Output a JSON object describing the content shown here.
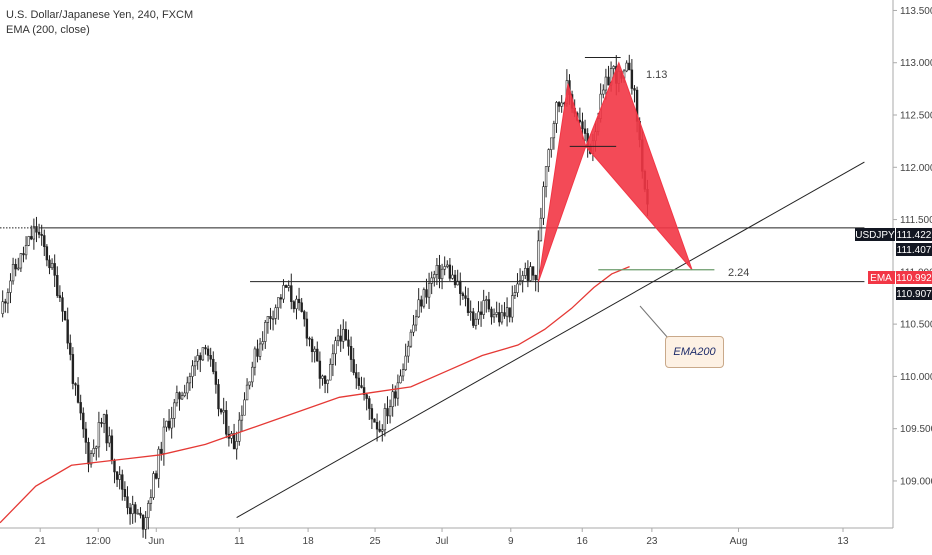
{
  "header": {
    "symbol_line": "U.S. Dollar/Japanese Yen, 240, FXCM",
    "indicator_line": "EMA (200, close)"
  },
  "price_tags": {
    "symbol": "USDJPY",
    "current": "111.422",
    "level_a": "111.407",
    "ema_label": "EMA",
    "ema_value": "110.992",
    "level_b": "110.907"
  },
  "annotations": {
    "ratio_top": "1.13",
    "ratio_bottom": "2.24",
    "callout": "EMA200"
  },
  "colors": {
    "candle": "#222222",
    "ema": "#e53935",
    "pattern": "#f23645",
    "ema_tag": "#f23645",
    "dark_tag": "#131722",
    "callout_bg": "#fdf1e4"
  },
  "chart_data": {
    "type": "candlestick",
    "title": "U.S. Dollar/Japanese Yen, 240, FXCM",
    "indicator": "EMA (200, close)",
    "y_axis": {
      "ylim": [
        108.55,
        113.6
      ],
      "ticks": [
        "113.500",
        "113.000",
        "112.500",
        "112.000",
        "111.500",
        "111.000",
        "110.500",
        "110.000",
        "109.500",
        "109.000"
      ],
      "position": "right"
    },
    "x_axis": {
      "ticks": [
        "21",
        "12:00",
        "Jun",
        "11",
        "18",
        "25",
        "Jul",
        "9",
        "16",
        "23",
        "Aug",
        "13"
      ],
      "tick_positions": [
        0.045,
        0.11,
        0.175,
        0.268,
        0.345,
        0.42,
        0.495,
        0.572,
        0.652,
        0.73,
        0.827,
        0.944
      ]
    },
    "price_path": [
      [
        0.0,
        110.6
      ],
      [
        0.012,
        110.95
      ],
      [
        0.025,
        111.15
      ],
      [
        0.04,
        111.42
      ],
      [
        0.055,
        111.1
      ],
      [
        0.07,
        110.7
      ],
      [
        0.085,
        109.8
      ],
      [
        0.1,
        109.2
      ],
      [
        0.115,
        109.6
      ],
      [
        0.13,
        109.1
      ],
      [
        0.145,
        108.75
      ],
      [
        0.16,
        108.6
      ],
      [
        0.172,
        109.0
      ],
      [
        0.185,
        109.5
      ],
      [
        0.2,
        109.8
      ],
      [
        0.215,
        110.05
      ],
      [
        0.23,
        110.35
      ],
      [
        0.245,
        109.7
      ],
      [
        0.262,
        109.35
      ],
      [
        0.28,
        110.05
      ],
      [
        0.3,
        110.55
      ],
      [
        0.32,
        110.85
      ],
      [
        0.34,
        110.55
      ],
      [
        0.355,
        110.1
      ],
      [
        0.365,
        109.85
      ],
      [
        0.38,
        110.45
      ],
      [
        0.395,
        110.15
      ],
      [
        0.41,
        109.75
      ],
      [
        0.425,
        109.5
      ],
      [
        0.44,
        109.8
      ],
      [
        0.455,
        110.25
      ],
      [
        0.47,
        110.7
      ],
      [
        0.485,
        110.95
      ],
      [
        0.5,
        111.05
      ],
      [
        0.515,
        110.8
      ],
      [
        0.53,
        110.55
      ],
      [
        0.545,
        110.7
      ],
      [
        0.56,
        110.55
      ],
      [
        0.572,
        110.65
      ],
      [
        0.585,
        111.0
      ],
      [
        0.6,
        110.95
      ],
      [
        0.61,
        112.0
      ],
      [
        0.622,
        112.55
      ],
      [
        0.635,
        112.75
      ],
      [
        0.648,
        112.45
      ],
      [
        0.66,
        112.15
      ],
      [
        0.672,
        112.6
      ],
      [
        0.685,
        112.95
      ],
      [
        0.697,
        112.8
      ],
      [
        0.705,
        113.0
      ],
      [
        0.713,
        112.5
      ],
      [
        0.722,
        111.8
      ],
      [
        0.727,
        111.42
      ]
    ],
    "ema_line": [
      [
        0.0,
        108.6
      ],
      [
        0.04,
        108.95
      ],
      [
        0.08,
        109.15
      ],
      [
        0.13,
        109.2
      ],
      [
        0.18,
        109.25
      ],
      [
        0.23,
        109.35
      ],
      [
        0.28,
        109.5
      ],
      [
        0.33,
        109.65
      ],
      [
        0.38,
        109.8
      ],
      [
        0.42,
        109.85
      ],
      [
        0.46,
        109.9
      ],
      [
        0.5,
        110.05
      ],
      [
        0.54,
        110.2
      ],
      [
        0.58,
        110.3
      ],
      [
        0.61,
        110.45
      ],
      [
        0.64,
        110.65
      ],
      [
        0.665,
        110.85
      ],
      [
        0.685,
        110.98
      ],
      [
        0.705,
        111.05
      ]
    ],
    "drawings": {
      "resistance_line": {
        "x": [
          0.0,
          0.968
        ],
        "y": 111.42,
        "style": "dotted-then-solid"
      },
      "neckline": {
        "x": [
          0.28,
          0.968
        ],
        "y": 110.907
      },
      "trendline": {
        "points": [
          [
            0.265,
            108.65
          ],
          [
            0.968,
            112.05
          ]
        ]
      },
      "bat_pattern": {
        "X": [
          0.603,
          110.907
        ],
        "A": [
          0.636,
          112.8
        ],
        "B": [
          0.656,
          112.2
        ],
        "C": [
          0.693,
          113.0
        ],
        "D": [
          0.775,
          111.02
        ]
      },
      "level_113": {
        "x": [
          0.655,
          0.695
        ],
        "y": 113.05,
        "label": "1.13"
      },
      "level_112": {
        "x": [
          0.638,
          0.69
        ],
        "y": 112.2
      },
      "level_224": {
        "x": [
          0.67,
          0.8
        ],
        "y": 111.02,
        "label": "2.24"
      }
    },
    "legend": "top-left",
    "grid": false
  }
}
